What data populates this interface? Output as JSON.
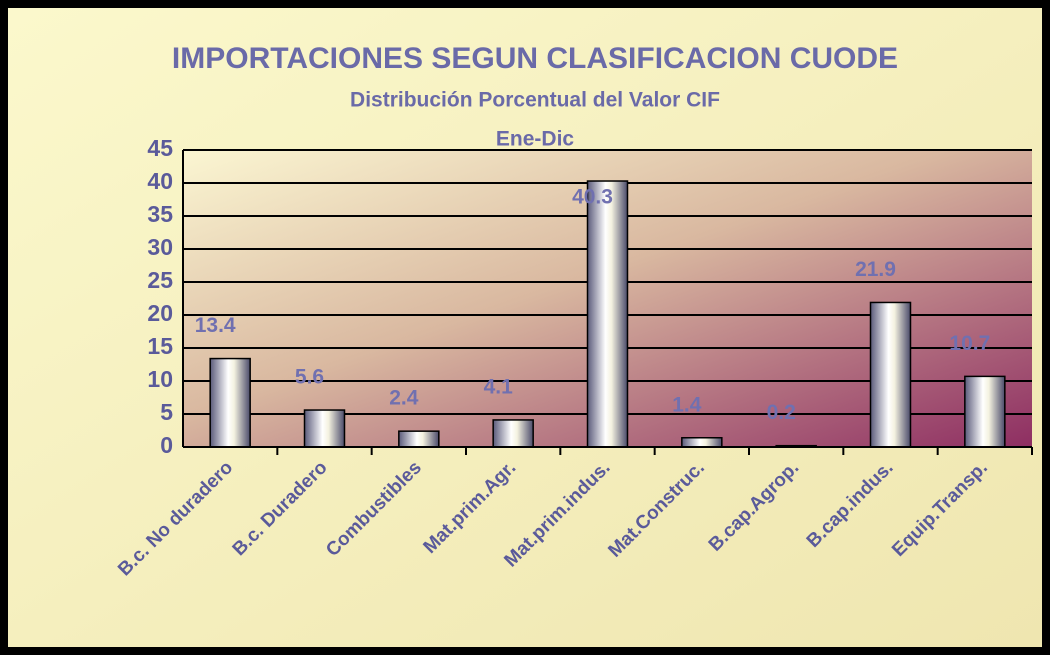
{
  "chart_data": {
    "type": "bar",
    "title": "IMPORTACIONES SEGUN CLASIFICACION CUODE",
    "subtitle": "Distribución Porcentual del Valor CIF",
    "period": "Ene-Dic",
    "categories": [
      "B.c. No duradero",
      "B.c. Duradero",
      "Combustibles",
      "Mat.prim.Agr.",
      "Mat.prim.indus.",
      "Mat.Construc.",
      "B.cap.Agrop.",
      "B.cap.indus.",
      "Equip.Transp."
    ],
    "values": [
      13.4,
      5.6,
      2.4,
      4.1,
      40.3,
      1.4,
      0.2,
      21.9,
      10.7
    ],
    "ylim": [
      0,
      45
    ],
    "yticks": [
      0,
      5,
      10,
      15,
      20,
      25,
      30,
      35,
      40,
      45
    ],
    "grid": true
  }
}
